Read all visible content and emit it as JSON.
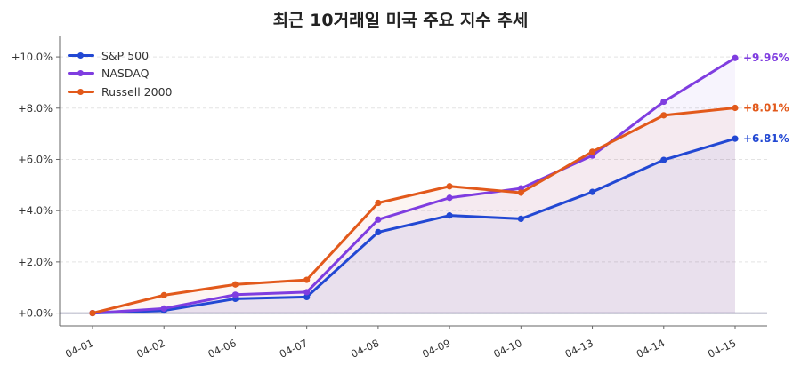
{
  "chart_data": {
    "type": "line",
    "title": "최근 10거래일 미국 주요 지수 추세",
    "xlabel": "",
    "ylabel": "",
    "categories": [
      "04-01",
      "04-02",
      "04-06",
      "04-07",
      "04-08",
      "04-09",
      "04-10",
      "04-13",
      "04-14",
      "04-15"
    ],
    "ylim": [
      -0.5,
      10.8
    ],
    "yticks": [
      0,
      2,
      4,
      6,
      8,
      10
    ],
    "ytick_labels": [
      "+0.0%",
      "+2.0%",
      "+4.0%",
      "+6.0%",
      "+8.0%",
      "+10.0%"
    ],
    "grid": true,
    "legend_position": "top-left",
    "series": [
      {
        "name": "S&P 500",
        "color": "#2248d3",
        "values": [
          0,
          0.1,
          0.56,
          0.63,
          3.16,
          3.81,
          3.68,
          4.73,
          5.98,
          6.81
        ],
        "end_label": "+6.81%"
      },
      {
        "name": "NASDAQ",
        "color": "#7f3de0",
        "values": [
          0,
          0.18,
          0.72,
          0.82,
          3.65,
          4.5,
          4.87,
          6.15,
          8.25,
          9.96
        ],
        "end_label": "+9.96%"
      },
      {
        "name": "Russell 2000",
        "color": "#e2591b",
        "values": [
          0,
          0.7,
          1.12,
          1.3,
          4.3,
          4.95,
          4.7,
          6.3,
          7.72,
          8.01
        ],
        "end_label": "+8.01%"
      }
    ]
  }
}
